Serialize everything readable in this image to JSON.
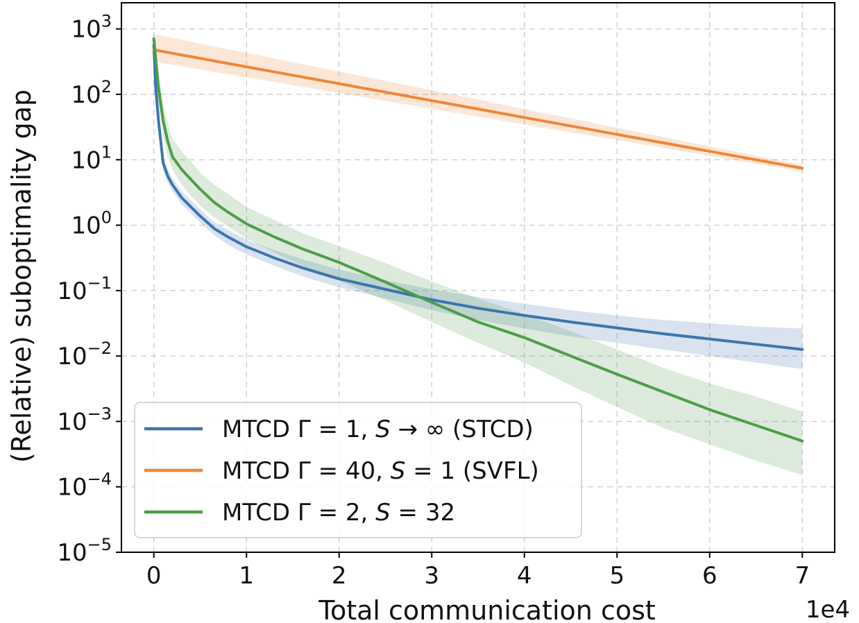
{
  "chart_data": {
    "type": "line",
    "xlabel": "Total communication cost",
    "x_offset_label": "1e4",
    "ylabel": "(Relative) suboptimality gap",
    "yscale": "log",
    "xlim": [
      -0.35,
      7.35
    ],
    "ylim_exp": [
      -5,
      3.4
    ],
    "grid": true,
    "legend_position": "lower-left",
    "x_ticks": [
      0,
      1,
      2,
      3,
      4,
      5,
      6,
      7
    ],
    "x_tick_labels": [
      "0",
      "1",
      "2",
      "3",
      "4",
      "5",
      "6",
      "7"
    ],
    "y_ticks_exp": [
      3,
      2,
      1,
      0,
      -1,
      -2,
      -3,
      -4,
      -5
    ],
    "y_tick_base": "10",
    "y_tick_exponents": [
      "3",
      "2",
      "1",
      "0",
      "−1",
      "−2",
      "−3",
      "−4",
      "−5"
    ],
    "series": [
      {
        "name": "MTCD Γ = 1, S → ∞ (STCD)",
        "legend_parts": [
          "MTCD ",
          "Γ",
          " = 1, ",
          "S",
          " → ∞ (STCD)"
        ],
        "color": "#3b75af",
        "fill_color": "#3b75af",
        "x": [
          0,
          0.02,
          0.05,
          0.1,
          0.15,
          0.2,
          0.3,
          0.4,
          0.5,
          0.65,
          0.8,
          1.0,
          1.3,
          1.6,
          2.0,
          2.5,
          3.0,
          3.5,
          4.0,
          4.5,
          5.0,
          5.5,
          6.0,
          6.5,
          7.0
        ],
        "y_exp": [
          2.75,
          2.1,
          1.6,
          0.95,
          0.75,
          0.62,
          0.42,
          0.28,
          0.14,
          -0.05,
          -0.18,
          -0.33,
          -0.5,
          -0.65,
          -0.82,
          -0.98,
          -1.14,
          -1.27,
          -1.38,
          -1.48,
          -1.57,
          -1.66,
          -1.74,
          -1.82,
          -1.9
        ],
        "band_low_exp": [
          2.7,
          2.0,
          1.5,
          0.85,
          0.65,
          0.52,
          0.32,
          0.18,
          0.04,
          -0.15,
          -0.3,
          -0.45,
          -0.62,
          -0.78,
          -0.95,
          -1.12,
          -1.3,
          -1.45,
          -1.58,
          -1.7,
          -1.8,
          -1.9,
          -2.0,
          -2.1,
          -2.2
        ],
        "band_high_exp": [
          2.8,
          2.2,
          1.7,
          1.05,
          0.85,
          0.72,
          0.52,
          0.38,
          0.24,
          0.05,
          -0.07,
          -0.22,
          -0.38,
          -0.52,
          -0.68,
          -0.84,
          -0.98,
          -1.1,
          -1.2,
          -1.3,
          -1.38,
          -1.45,
          -1.5,
          -1.55,
          -1.58
        ]
      },
      {
        "name": "MTCD Γ = 40, S = 1 (SVFL)",
        "legend_parts": [
          "MTCD ",
          "Γ",
          " = 40, ",
          "S",
          " = 1 (SVFL)"
        ],
        "color": "#ef8636",
        "fill_color": "#ef8636",
        "x": [
          0,
          7.0
        ],
        "y_exp": [
          2.68,
          0.87
        ],
        "band_low_exp": [
          2.5,
          0.82
        ],
        "band_high_exp": [
          2.92,
          0.92
        ]
      },
      {
        "name": "MTCD Γ = 2, S = 32",
        "legend_parts": [
          "MTCD ",
          "Γ",
          " = 2, ",
          "S",
          " = 32"
        ],
        "color": "#4e9d49",
        "fill_color": "#4e9d49",
        "x": [
          0,
          0.02,
          0.05,
          0.1,
          0.15,
          0.2,
          0.3,
          0.4,
          0.5,
          0.65,
          0.8,
          1.0,
          1.3,
          1.6,
          2.0,
          2.5,
          3.0,
          3.5,
          4.0,
          4.5,
          5.0,
          5.5,
          6.0,
          6.5,
          7.0
        ],
        "y_exp": [
          2.85,
          2.55,
          2.1,
          1.6,
          1.28,
          1.05,
          0.85,
          0.7,
          0.55,
          0.35,
          0.2,
          0.02,
          -0.18,
          -0.36,
          -0.57,
          -0.87,
          -1.18,
          -1.48,
          -1.72,
          -2.0,
          -2.28,
          -2.55,
          -2.82,
          -3.06,
          -3.3
        ],
        "band_low_exp": [
          2.6,
          2.3,
          1.85,
          1.35,
          1.05,
          0.85,
          0.62,
          0.45,
          0.3,
          0.12,
          -0.02,
          -0.2,
          -0.42,
          -0.62,
          -0.85,
          -1.15,
          -1.48,
          -1.8,
          -2.1,
          -2.45,
          -2.78,
          -3.1,
          -3.35,
          -3.6,
          -3.82
        ],
        "band_high_exp": [
          2.95,
          2.75,
          2.35,
          1.85,
          1.55,
          1.32,
          1.13,
          0.98,
          0.8,
          0.62,
          0.48,
          0.28,
          0.08,
          -0.12,
          -0.32,
          -0.58,
          -0.86,
          -1.12,
          -1.36,
          -1.62,
          -1.9,
          -2.18,
          -2.42,
          -2.62,
          -2.85
        ]
      }
    ]
  }
}
